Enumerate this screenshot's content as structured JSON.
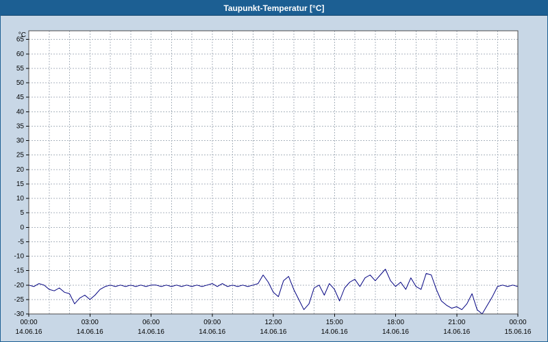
{
  "window": {
    "title": "Taupunkt-Temperatur [°C]"
  },
  "colors": {
    "titlebar": "#1c5f93",
    "background": "#c8d7e6",
    "plot_background": "#ffffff",
    "grid": "#a8b2bc",
    "plot_border": "#4a4a4a",
    "axis_text": "#000000",
    "line": "#000080"
  },
  "chart_data": {
    "type": "line",
    "title": "Taupunkt-Temperatur [°C]",
    "xlabel": "",
    "ylabel": "°C",
    "ylim": [
      -30,
      68
    ],
    "xlim_hours": [
      0,
      24
    ],
    "y_ticks": [
      65,
      60,
      55,
      50,
      45,
      40,
      35,
      30,
      25,
      20,
      15,
      10,
      5,
      0,
      -5,
      -10,
      -15,
      -20,
      -25,
      -30
    ],
    "x_ticks": [
      {
        "hour": 0,
        "time": "00:00",
        "date": "14.06.16"
      },
      {
        "hour": 3,
        "time": "03:00",
        "date": "14.06.16"
      },
      {
        "hour": 6,
        "time": "06:00",
        "date": "14.06.16"
      },
      {
        "hour": 9,
        "time": "09:00",
        "date": "14.06.16"
      },
      {
        "hour": 12,
        "time": "12:00",
        "date": "14.06.16"
      },
      {
        "hour": 15,
        "time": "15:00",
        "date": "14.06.16"
      },
      {
        "hour": 18,
        "time": "18:00",
        "date": "14.06.16"
      },
      {
        "hour": 21,
        "time": "21:00",
        "date": "14.06.16"
      },
      {
        "hour": 24,
        "time": "00:00",
        "date": "15.06.16"
      }
    ],
    "grid": {
      "show": true,
      "style": "dashed",
      "x_interval_hours": 1,
      "y_interval": 5
    },
    "legend": "none",
    "series": [
      {
        "name": "Taupunkt-Temperatur",
        "color": "#000080",
        "x_start_hour": 0,
        "x_step_hours": 0.25,
        "values": [
          -20,
          -20.5,
          -19.5,
          -20,
          -21.5,
          -22,
          -21,
          -22.5,
          -23,
          -26.5,
          -24.5,
          -23.5,
          -25,
          -23.5,
          -21.5,
          -20.5,
          -20,
          -20.5,
          -20,
          -20.5,
          -20,
          -20.5,
          -20,
          -20.5,
          -20,
          -20,
          -20.5,
          -20,
          -20.5,
          -20,
          -20.5,
          -20,
          -20.5,
          -20,
          -20.5,
          -20,
          -19.5,
          -20.5,
          -19.5,
          -20.5,
          -20,
          -20.5,
          -20,
          -20.5,
          -20,
          -19.5,
          -16.5,
          -19,
          -22.5,
          -24,
          -18.5,
          -17,
          -21.5,
          -25,
          -28.5,
          -26.5,
          -21,
          -20,
          -23.5,
          -19.5,
          -21.5,
          -25.5,
          -21,
          -19,
          -18,
          -20.5,
          -17.5,
          -16.5,
          -18.5,
          -16.5,
          -14.5,
          -18.5,
          -20.5,
          -19,
          -21.5,
          -17.5,
          -20.5,
          -21.5,
          -16,
          -16.5,
          -21.5,
          -25.5,
          -27,
          -28,
          -27.5,
          -28.5,
          -26.5,
          -23,
          -28.5,
          -30,
          -27,
          -24,
          -20.5,
          -20,
          -20.5,
          -20,
          -20.5
        ]
      }
    ]
  }
}
